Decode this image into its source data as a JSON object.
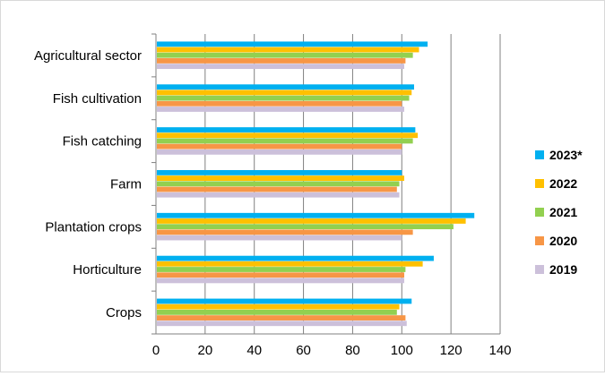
{
  "chart_data": {
    "type": "bar",
    "orientation": "horizontal",
    "categories": [
      "Agricultural sector",
      "Fish cultivation",
      "Fish catching",
      "Farm",
      "Plantation crops",
      "Horticulture",
      "Crops"
    ],
    "series": [
      {
        "name": "2023*",
        "color": "#00b0f0",
        "values": [
          110.5,
          105,
          105.5,
          100,
          129.5,
          113,
          104
        ]
      },
      {
        "name": "2022",
        "color": "#ffc000",
        "values": [
          107,
          104,
          106.5,
          101,
          126,
          108.5,
          99
        ]
      },
      {
        "name": "2021",
        "color": "#92d050",
        "values": [
          104.5,
          103,
          104.5,
          99,
          121,
          101.5,
          98
        ]
      },
      {
        "name": "2020",
        "color": "#f79646",
        "values": [
          101.5,
          100,
          100,
          98,
          104.5,
          101,
          101.5
        ]
      },
      {
        "name": "2019",
        "color": "#ccc0da",
        "values": [
          101,
          101,
          100,
          99,
          100,
          101,
          102
        ]
      }
    ],
    "xlim": [
      0,
      140
    ],
    "xticks": [
      "0",
      "20",
      "40",
      "60",
      "80",
      "100",
      "120",
      "140"
    ],
    "grid": "vertical",
    "legend_position": "right"
  }
}
